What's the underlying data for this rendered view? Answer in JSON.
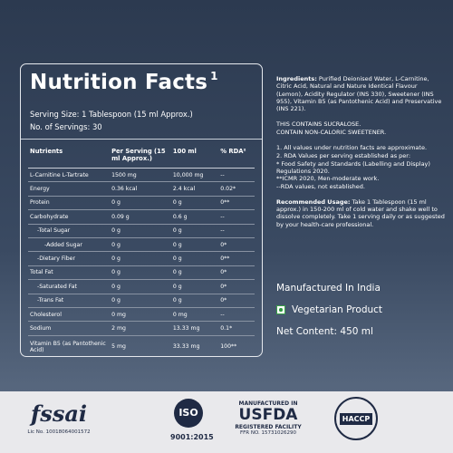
{
  "nutrition_facts": {
    "title": "Nutrition Facts",
    "footnote_mark": "1",
    "serving_size": "Serving Size: 1 Tablespoon (15 ml Approx.)",
    "servings": "No. of Servings: 30",
    "table": {
      "header": [
        "Nutrients",
        "Per Serving (15 ml Approx.)",
        "100 ml",
        "% RDA²"
      ],
      "rows": [
        [
          "L-Carnitine L-Tartrate",
          "1500 mg",
          "10,000 mg",
          "--"
        ],
        [
          "Energy",
          "0.36 kcal",
          "2.4 kcal",
          "0.02*"
        ],
        [
          "Protein",
          "0 g",
          "0 g",
          "0**"
        ],
        [
          "Carbohydrate",
          "0.09 g",
          "0.6 g",
          "--"
        ],
        [
          "-Total Sugar",
          "0 g",
          "0 g",
          "--"
        ],
        [
          "-Added Sugar",
          "0 g",
          "0 g",
          "0*"
        ],
        [
          "-Dietary Fiber",
          "0 g",
          "0 g",
          "0**"
        ],
        [
          "Total Fat",
          "0 g",
          "0 g",
          "0*"
        ],
        [
          "-Saturated Fat",
          "0 g",
          "0 g",
          "0*"
        ],
        [
          "-Trans Fat",
          "0 g",
          "0 g",
          "0*"
        ],
        [
          "Cholesterol",
          "0 mg",
          "0 mg",
          "--"
        ],
        [
          "Sodium",
          "2 mg",
          "13.33 mg",
          "0.1*"
        ],
        [
          "Vitamin B5 (as Pantothenic Acid)",
          "5 mg",
          "33.33 mg",
          "100**"
        ]
      ]
    }
  },
  "ingredients": {
    "label": "Ingredients:",
    "text": "Purified Deionised Water, L-Carnitine, Citric Acid, Natural and Nature Identical Flavour (Lemon), Acidity Regulator (INS 330), Sweetener (INS 955), Vitamin B5 (as Pantothenic Acid) and Preservative (INS 221)."
  },
  "notices": [
    "THIS CONTAINS SUCRALOSE.",
    "CONTAIN NON-CALORIC SWEETENER."
  ],
  "notes": [
    "1. All values under nutrition facts  are approximate.",
    "2. RDA Values per serving established as per:",
    "* Food Safety and Standards (Labelling and Display) Regulations 2020.",
    "**ICMR 2020, Men-moderate work.",
    "--RDA values, not established."
  ],
  "usage": {
    "label": "Recommended Usage:",
    "text": "Take 1 Tablespoon (15 ml approx.) in 150-200 ml of cold water and shake well to dissolve completely. Take 1 serving daily or as suggested by your health-care professional."
  },
  "origin": "Manufactured In India",
  "diet": "Vegetarian Product",
  "net_content": "Net Content: 450 ml",
  "certifications": {
    "fssai": {
      "logo": "fssai",
      "license": "Lic No. 10018064001572"
    },
    "iso": {
      "logo": "ISO",
      "standard": "9001:2015"
    },
    "usfda": {
      "top": "MANUFACTURED IN",
      "logo": "USFDA",
      "middle": "REGISTERED FACILITY",
      "bottom": "FFR NO. 15731026290"
    },
    "haccp": {
      "logo": "HACCP"
    }
  }
}
